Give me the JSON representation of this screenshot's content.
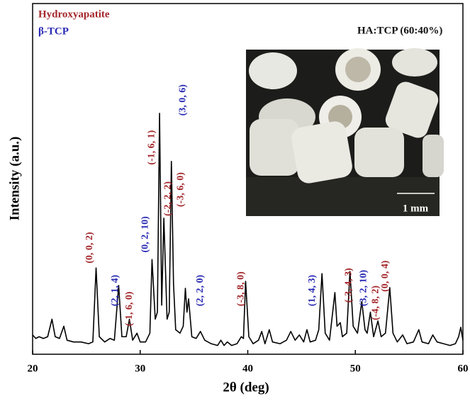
{
  "chart_data": {
    "type": "line",
    "xlabel": "2θ (deg)",
    "ylabel": "Intensity (a.u.)",
    "xlim": [
      20,
      60
    ],
    "xticks": [
      20,
      30,
      40,
      50,
      60
    ],
    "ylim": [
      0,
      100
    ],
    "annotation": "HA:TCP (60:40%)",
    "inset_scale_label": "1 mm",
    "legend": [
      {
        "name": "Hydroxyapatite",
        "color": "#a3262a"
      },
      {
        "name": "β-TCP",
        "color": "#2a2ab4"
      }
    ],
    "x": [
      20.0,
      20.3,
      20.6,
      21.0,
      21.4,
      21.8,
      22.1,
      22.5,
      22.9,
      23.2,
      23.8,
      24.5,
      25.2,
      25.6,
      25.9,
      26.2,
      26.7,
      27.2,
      27.6,
      28.0,
      28.3,
      28.7,
      29.0,
      29.3,
      29.7,
      30.0,
      30.5,
      30.9,
      31.1,
      31.4,
      31.6,
      31.8,
      32.0,
      32.2,
      32.5,
      32.7,
      32.9,
      33.1,
      33.3,
      33.7,
      34.0,
      34.2,
      34.35,
      34.5,
      34.8,
      35.2,
      35.6,
      36.0,
      36.6,
      37.2,
      37.5,
      37.8,
      38.1,
      38.5,
      39.0,
      39.4,
      39.6,
      39.8,
      40.1,
      40.5,
      41.0,
      41.3,
      41.6,
      42.0,
      42.3,
      43.0,
      43.6,
      44.0,
      44.4,
      44.8,
      45.2,
      45.5,
      45.8,
      46.3,
      46.6,
      46.9,
      47.2,
      47.6,
      48.1,
      48.3,
      48.6,
      48.8,
      49.2,
      49.5,
      49.8,
      50.2,
      50.6,
      50.9,
      51.1,
      51.4,
      51.7,
      52.1,
      52.4,
      52.8,
      53.2,
      53.5,
      53.9,
      54.4,
      54.8,
      55.4,
      55.9,
      56.2,
      56.8,
      57.2,
      57.6,
      58.2,
      58.8,
      59.3,
      59.6,
      59.8,
      60.0
    ],
    "series": [
      {
        "color": "#000000",
        "values": [
          5.5,
          4.5,
          5,
          4.5,
          5,
          10,
          5,
          4.5,
          8,
          4,
          3.5,
          3.5,
          3,
          3.5,
          24.6,
          5,
          3.5,
          4.5,
          4,
          19.6,
          5,
          5,
          10,
          4,
          6,
          3.5,
          3.5,
          6,
          27,
          10,
          12,
          68.7,
          14,
          38.8,
          10,
          12,
          55,
          20,
          7,
          6,
          8,
          18.8,
          12,
          15.8,
          5,
          4.5,
          6.5,
          4,
          3,
          2.5,
          4,
          2.5,
          3.5,
          2.5,
          3,
          5,
          4.5,
          20.8,
          5,
          3,
          4,
          6.5,
          3,
          7,
          3.5,
          3,
          4,
          6.5,
          4,
          5.5,
          3.5,
          7,
          3.5,
          4,
          7,
          23,
          6,
          4,
          17.6,
          8,
          9,
          5,
          6,
          23.6,
          8,
          6,
          15,
          7,
          6,
          12,
          5,
          9.5,
          5,
          6,
          19,
          6,
          3.5,
          5.5,
          3,
          3.5,
          7,
          3.5,
          3,
          5.5,
          3.5,
          3,
          2.5,
          3,
          5,
          7.7,
          4
        ]
      }
    ],
    "peak_labels": [
      {
        "text": "(0, 0, 2)",
        "x": 25.34,
        "y": 25.9,
        "color": "#a3262a"
      },
      {
        "text": "(2, 1, 4)",
        "x": 27.7,
        "y": 13.7,
        "color": "#2a2ab4"
      },
      {
        "text": "(-1, 6, 0)",
        "x": 29.0,
        "y": 8,
        "color": "#a3262a"
      },
      {
        "text": "(0, 2, 10)",
        "x": 30.5,
        "y": 29,
        "color": "#2a2ab4"
      },
      {
        "text": "(-1, 6, 1)",
        "x": 31.1,
        "y": 54,
        "color": "#a3262a"
      },
      {
        "text": "(-2, 2, 2)",
        "x": 32.6,
        "y": 39.4,
        "color": "#a3262a"
      },
      {
        "text": "(-3, 6, 0)",
        "x": 33.8,
        "y": 42,
        "color": "#a3262a"
      },
      {
        "text": "(3, 0, 6)",
        "x": 34.0,
        "y": 68,
        "color": "#2a2ab4"
      },
      {
        "text": "(2, 2, 0)",
        "x": 35.6,
        "y": 13.7,
        "color": "#2a2ab4"
      },
      {
        "text": "(-3, 8, 0)",
        "x": 39.4,
        "y": 13.7,
        "color": "#a3262a"
      },
      {
        "text": "(1, 4, 3)",
        "x": 46.0,
        "y": 13.7,
        "color": "#2a2ab4"
      },
      {
        "text": "(-3, 4, 3)",
        "x": 49.4,
        "y": 14.7,
        "color": "#a3262a"
      },
      {
        "text": "(3, 2, 10)",
        "x": 50.8,
        "y": 13.7,
        "color": "#2a2ab4"
      },
      {
        "text": "(-4, 8, 2)",
        "x": 51.9,
        "y": 9.7,
        "color": "#a3262a"
      },
      {
        "text": "(0, 0, 4)",
        "x": 52.8,
        "y": 17.8,
        "color": "#a3262a"
      }
    ]
  }
}
